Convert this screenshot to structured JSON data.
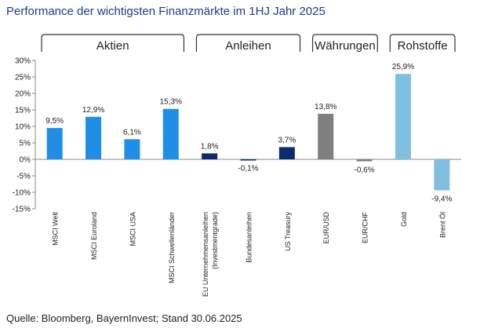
{
  "title": "Performance der wichtigsten Finanzmärkte im 1HJ Jahr 2025",
  "source": "Quelle: Bloomberg, BayernInvest; Stand 30.06.2025",
  "chart_data": {
    "type": "bar",
    "ylim": [
      -15,
      30
    ],
    "yticks": [
      30,
      25,
      20,
      15,
      10,
      5,
      0,
      -5,
      -10,
      -15
    ],
    "ytick_labels": [
      "30%",
      "25%",
      "20%",
      "15%",
      "10%",
      "5%",
      "0%",
      "-5%",
      "-10%",
      "-15%"
    ],
    "grid": false,
    "groups": [
      {
        "name": "Aktien",
        "start": 0,
        "end": 3
      },
      {
        "name": "Anleihen",
        "start": 4,
        "end": 6
      },
      {
        "name": "Währungen",
        "start": 7,
        "end": 8
      },
      {
        "name": "Rohstoffe",
        "start": 9,
        "end": 10
      }
    ],
    "categories": [
      [
        "MSCI Welt"
      ],
      [
        "MSCI Euroland"
      ],
      [
        "MSCI USA"
      ],
      [
        "MSCI Schwellenländer"
      ],
      [
        "EU Unternehmensanleihen",
        "(Investmentgrade)"
      ],
      [
        "Bundesanleihen"
      ],
      [
        "US Treasury"
      ],
      [
        "EUR/USD"
      ],
      [
        "EUR/CHF"
      ],
      [
        "Gold"
      ],
      [
        "Brent Öl"
      ]
    ],
    "values": [
      9.5,
      12.9,
      6.1,
      15.3,
      1.8,
      -0.1,
      3.7,
      13.8,
      -0.6,
      25.9,
      -9.4
    ],
    "value_labels": [
      "9,5%",
      "12,9%",
      "6,1%",
      "15,3%",
      "1,8%",
      "-0,1%",
      "3,7%",
      "13,8%",
      "-0,6%",
      "25,9%",
      "-9,4%"
    ],
    "colors": [
      "#1f8fe5",
      "#1f8fe5",
      "#1f8fe5",
      "#1f8fe5",
      "#0b2a6f",
      "#0b2a6f",
      "#0b2a6f",
      "#7f7f7f",
      "#7f7f7f",
      "#7fbfe0",
      "#7fbfe0"
    ]
  }
}
